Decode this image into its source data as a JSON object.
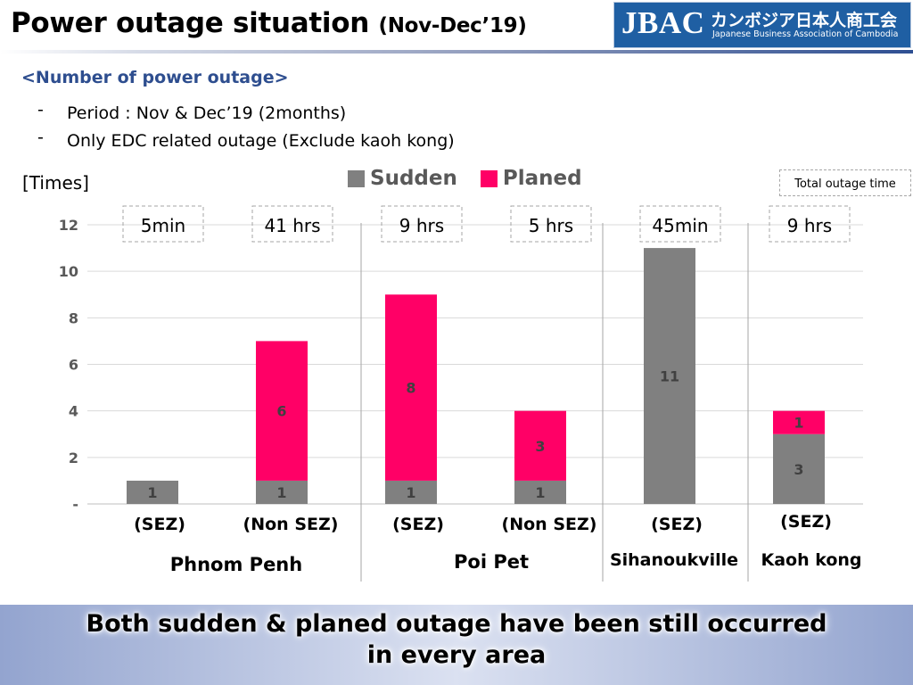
{
  "header": {
    "title": "Power outage situation",
    "title_sub": "(Nov-Dec’19)",
    "logo_mark": "JBAC",
    "logo_jp": "カンボジア日本人商工会",
    "logo_en": "Japanese Business Association of Cambodia"
  },
  "section_heading": "<Number of power outage>",
  "bullets": [
    {
      "dash": "-",
      "text": "Period : Nov & Dec’19 (2months)"
    },
    {
      "dash": "-",
      "text": "Only EDC related outage (Exclude kaoh kong)"
    }
  ],
  "unit_label": "[Times]",
  "total_box_label": "Total outage time",
  "legend": [
    {
      "name": "Sudden",
      "color": "#808080"
    },
    {
      "name": "Planed",
      "color": "#ff0066"
    }
  ],
  "chart_data": {
    "type": "bar",
    "stacked": true,
    "title": "",
    "ylabel": "[Times]",
    "ylim": [
      0,
      12
    ],
    "yticks": [
      {
        "value": 0,
        "label": "-"
      },
      {
        "value": 2,
        "label": "2"
      },
      {
        "value": 4,
        "label": "4"
      },
      {
        "value": 6,
        "label": "6"
      },
      {
        "value": 8,
        "label": "8"
      },
      {
        "value": 10,
        "label": "10"
      },
      {
        "value": 12,
        "label": "12"
      }
    ],
    "grid": true,
    "legend_position": "top-center",
    "categories": [
      "(SEZ)",
      "(Non SEZ)",
      "(SEZ)",
      "(Non SEZ)",
      "(SEZ)",
      "(SEZ)"
    ],
    "groups": [
      {
        "name": "Phnom Penh",
        "categories": [
          0,
          1
        ]
      },
      {
        "name": "Poi Pet",
        "categories": [
          2,
          3
        ]
      },
      {
        "name": "Sihanoukville",
        "categories": [
          4
        ]
      },
      {
        "name": "Kaoh kong",
        "categories": [
          5
        ]
      }
    ],
    "series": [
      {
        "name": "Sudden",
        "color": "#808080",
        "values": [
          1,
          1,
          1,
          1,
          11,
          3
        ]
      },
      {
        "name": "Planed",
        "color": "#ff0066",
        "values": [
          0,
          6,
          8,
          3,
          0,
          1
        ]
      }
    ],
    "total_outage_time": [
      "5min",
      "41 hrs",
      "9 hrs",
      "5 hrs",
      "45min",
      "9 hrs"
    ]
  },
  "footer": {
    "line1": "Both sudden & planed outage have been still occurred",
    "line2": "in every area"
  }
}
